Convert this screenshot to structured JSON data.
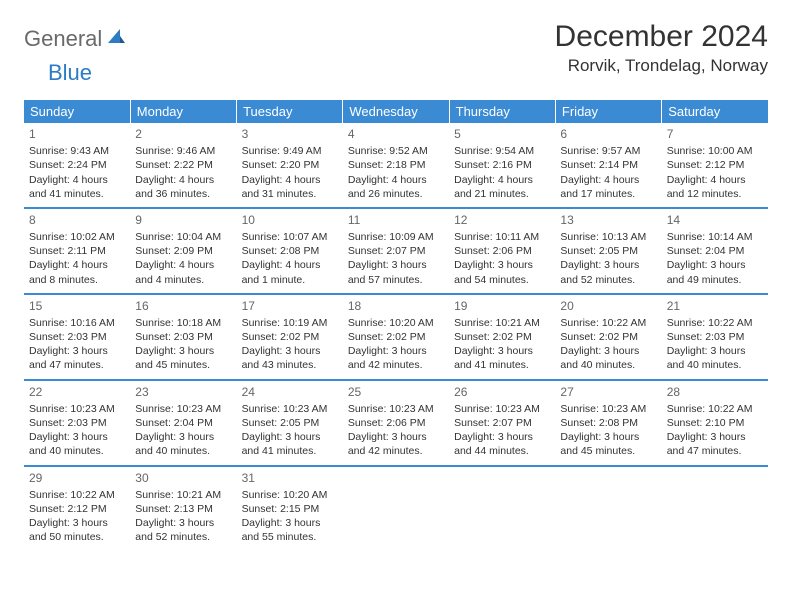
{
  "logo": {
    "general": "General",
    "blue": "Blue"
  },
  "title": "December 2024",
  "location": "Rorvik, Trondelag, Norway",
  "colors": {
    "header_bg": "#3b8bd4",
    "header_text": "#ffffff",
    "border": "#3b8bd4",
    "logo_gray": "#6a6a6a",
    "logo_blue": "#2d7bc4",
    "body_text": "#333333",
    "daynum": "#666666",
    "page_bg": "#ffffff"
  },
  "weekdays": [
    "Sunday",
    "Monday",
    "Tuesday",
    "Wednesday",
    "Thursday",
    "Friday",
    "Saturday"
  ],
  "days": [
    {
      "n": 1,
      "sunrise": "9:43 AM",
      "sunset": "2:24 PM",
      "daylight": "4 hours and 41 minutes."
    },
    {
      "n": 2,
      "sunrise": "9:46 AM",
      "sunset": "2:22 PM",
      "daylight": "4 hours and 36 minutes."
    },
    {
      "n": 3,
      "sunrise": "9:49 AM",
      "sunset": "2:20 PM",
      "daylight": "4 hours and 31 minutes."
    },
    {
      "n": 4,
      "sunrise": "9:52 AM",
      "sunset": "2:18 PM",
      "daylight": "4 hours and 26 minutes."
    },
    {
      "n": 5,
      "sunrise": "9:54 AM",
      "sunset": "2:16 PM",
      "daylight": "4 hours and 21 minutes."
    },
    {
      "n": 6,
      "sunrise": "9:57 AM",
      "sunset": "2:14 PM",
      "daylight": "4 hours and 17 minutes."
    },
    {
      "n": 7,
      "sunrise": "10:00 AM",
      "sunset": "2:12 PM",
      "daylight": "4 hours and 12 minutes."
    },
    {
      "n": 8,
      "sunrise": "10:02 AM",
      "sunset": "2:11 PM",
      "daylight": "4 hours and 8 minutes."
    },
    {
      "n": 9,
      "sunrise": "10:04 AM",
      "sunset": "2:09 PM",
      "daylight": "4 hours and 4 minutes."
    },
    {
      "n": 10,
      "sunrise": "10:07 AM",
      "sunset": "2:08 PM",
      "daylight": "4 hours and 1 minute."
    },
    {
      "n": 11,
      "sunrise": "10:09 AM",
      "sunset": "2:07 PM",
      "daylight": "3 hours and 57 minutes."
    },
    {
      "n": 12,
      "sunrise": "10:11 AM",
      "sunset": "2:06 PM",
      "daylight": "3 hours and 54 minutes."
    },
    {
      "n": 13,
      "sunrise": "10:13 AM",
      "sunset": "2:05 PM",
      "daylight": "3 hours and 52 minutes."
    },
    {
      "n": 14,
      "sunrise": "10:14 AM",
      "sunset": "2:04 PM",
      "daylight": "3 hours and 49 minutes."
    },
    {
      "n": 15,
      "sunrise": "10:16 AM",
      "sunset": "2:03 PM",
      "daylight": "3 hours and 47 minutes."
    },
    {
      "n": 16,
      "sunrise": "10:18 AM",
      "sunset": "2:03 PM",
      "daylight": "3 hours and 45 minutes."
    },
    {
      "n": 17,
      "sunrise": "10:19 AM",
      "sunset": "2:02 PM",
      "daylight": "3 hours and 43 minutes."
    },
    {
      "n": 18,
      "sunrise": "10:20 AM",
      "sunset": "2:02 PM",
      "daylight": "3 hours and 42 minutes."
    },
    {
      "n": 19,
      "sunrise": "10:21 AM",
      "sunset": "2:02 PM",
      "daylight": "3 hours and 41 minutes."
    },
    {
      "n": 20,
      "sunrise": "10:22 AM",
      "sunset": "2:02 PM",
      "daylight": "3 hours and 40 minutes."
    },
    {
      "n": 21,
      "sunrise": "10:22 AM",
      "sunset": "2:03 PM",
      "daylight": "3 hours and 40 minutes."
    },
    {
      "n": 22,
      "sunrise": "10:23 AM",
      "sunset": "2:03 PM",
      "daylight": "3 hours and 40 minutes."
    },
    {
      "n": 23,
      "sunrise": "10:23 AM",
      "sunset": "2:04 PM",
      "daylight": "3 hours and 40 minutes."
    },
    {
      "n": 24,
      "sunrise": "10:23 AM",
      "sunset": "2:05 PM",
      "daylight": "3 hours and 41 minutes."
    },
    {
      "n": 25,
      "sunrise": "10:23 AM",
      "sunset": "2:06 PM",
      "daylight": "3 hours and 42 minutes."
    },
    {
      "n": 26,
      "sunrise": "10:23 AM",
      "sunset": "2:07 PM",
      "daylight": "3 hours and 44 minutes."
    },
    {
      "n": 27,
      "sunrise": "10:23 AM",
      "sunset": "2:08 PM",
      "daylight": "3 hours and 45 minutes."
    },
    {
      "n": 28,
      "sunrise": "10:22 AM",
      "sunset": "2:10 PM",
      "daylight": "3 hours and 47 minutes."
    },
    {
      "n": 29,
      "sunrise": "10:22 AM",
      "sunset": "2:12 PM",
      "daylight": "3 hours and 50 minutes."
    },
    {
      "n": 30,
      "sunrise": "10:21 AM",
      "sunset": "2:13 PM",
      "daylight": "3 hours and 52 minutes."
    },
    {
      "n": 31,
      "sunrise": "10:20 AM",
      "sunset": "2:15 PM",
      "daylight": "3 hours and 55 minutes."
    }
  ],
  "labels": {
    "sunrise": "Sunrise:",
    "sunset": "Sunset:",
    "daylight": "Daylight:"
  },
  "layout": {
    "first_weekday_index": 0,
    "rows": 5,
    "cols": 7
  }
}
